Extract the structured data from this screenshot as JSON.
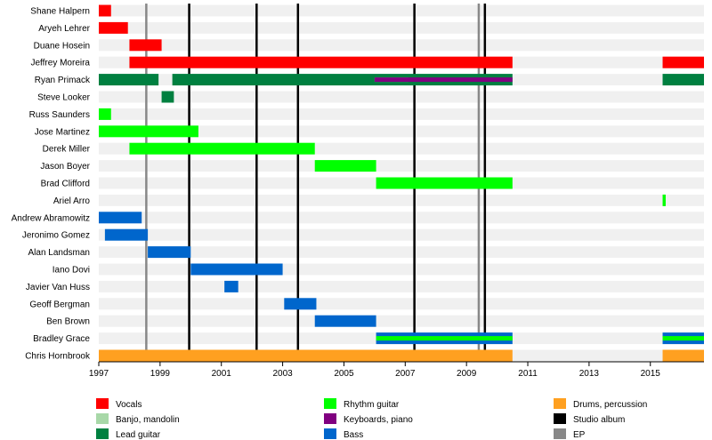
{
  "chart_data": {
    "type": "timeline",
    "title": "",
    "xlim": [
      1997,
      2016.75
    ],
    "xticks": [
      1997,
      1999,
      2001,
      2003,
      2005,
      2007,
      2009,
      2011,
      2013,
      2015
    ],
    "colors": {
      "Vocals": "#ff0000",
      "Banjo, mandolin": "#a8d8a8",
      "Lead guitar": "#008040",
      "Rhythm guitar": "#00ff00",
      "Keyboards, piano": "#800080",
      "Bass": "#0066cc",
      "Drums, percussion": "#ffa020",
      "Studio album": "#000000",
      "EP": "#888888"
    },
    "members": [
      {
        "name": "Shane Halpern",
        "bars": [
          {
            "role": "Vocals",
            "start": 1997,
            "end": 1997.4
          }
        ]
      },
      {
        "name": "Aryeh Lehrer",
        "bars": [
          {
            "role": "Vocals",
            "start": 1997,
            "end": 1997.95
          }
        ]
      },
      {
        "name": "Duane Hosein",
        "bars": [
          {
            "role": "Vocals",
            "start": 1998,
            "end": 1999.05
          }
        ]
      },
      {
        "name": "Jeffrey Moreira",
        "bars": [
          {
            "role": "Vocals",
            "start": 1998,
            "end": 2010.5
          },
          {
            "role": "Vocals",
            "start": 2015.4,
            "end": 2016.75
          }
        ]
      },
      {
        "name": "Ryan Primack",
        "bars": [
          {
            "role": "Lead guitar",
            "start": 1997,
            "end": 1998.95
          },
          {
            "role": "Lead guitar",
            "start": 1999.4,
            "end": 2010.5
          },
          {
            "role": "Lead guitar",
            "start": 2015.4,
            "end": 2016.75
          },
          {
            "role": "Banjo, mandolin",
            "start": 2006,
            "end": 2007.1,
            "inner": true
          },
          {
            "role": "Keyboards, piano",
            "start": 2006,
            "end": 2010.5,
            "inner": true
          }
        ]
      },
      {
        "name": "Steve Looker",
        "bars": [
          {
            "role": "Lead guitar",
            "start": 1999.05,
            "end": 1999.45
          }
        ]
      },
      {
        "name": "Russ Saunders",
        "bars": [
          {
            "role": "Rhythm guitar",
            "start": 1997,
            "end": 1997.4
          }
        ]
      },
      {
        "name": "Jose Martinez",
        "bars": [
          {
            "role": "Rhythm guitar",
            "start": 1997,
            "end": 2000.25
          }
        ]
      },
      {
        "name": "Derek Miller",
        "bars": [
          {
            "role": "Rhythm guitar",
            "start": 1998,
            "end": 2004.05
          }
        ]
      },
      {
        "name": "Jason Boyer",
        "bars": [
          {
            "role": "Rhythm guitar",
            "start": 2004.05,
            "end": 2006.05
          }
        ]
      },
      {
        "name": "Brad Clifford",
        "bars": [
          {
            "role": "Rhythm guitar",
            "start": 2006.05,
            "end": 2010.5
          }
        ]
      },
      {
        "name": "Ariel Arro",
        "bars": [
          {
            "role": "Rhythm guitar",
            "start": 2015.4,
            "end": 2015.5
          }
        ]
      },
      {
        "name": "Andrew Abramowitz",
        "bars": [
          {
            "role": "Bass",
            "start": 1997,
            "end": 1998.4
          }
        ]
      },
      {
        "name": "Jeronimo Gomez",
        "bars": [
          {
            "role": "Bass",
            "start": 1997.2,
            "end": 1998.6
          }
        ]
      },
      {
        "name": "Alan Landsman",
        "bars": [
          {
            "role": "Bass",
            "start": 1998.6,
            "end": 2000
          }
        ]
      },
      {
        "name": "Iano Dovi",
        "bars": [
          {
            "role": "Bass",
            "start": 2000,
            "end": 2003
          }
        ]
      },
      {
        "name": "Javier Van Huss",
        "bars": [
          {
            "role": "Bass",
            "start": 2001.1,
            "end": 2001.55
          }
        ]
      },
      {
        "name": "Geoff Bergman",
        "bars": [
          {
            "role": "Bass",
            "start": 2003.05,
            "end": 2004.1
          }
        ]
      },
      {
        "name": "Ben Brown",
        "bars": [
          {
            "role": "Bass",
            "start": 2004.05,
            "end": 2006.05
          }
        ]
      },
      {
        "name": "Bradley Grace",
        "bars": [
          {
            "role": "Bass",
            "start": 2006.05,
            "end": 2010.5
          },
          {
            "role": "Rhythm guitar",
            "start": 2006.05,
            "end": 2010.5,
            "inner": true
          },
          {
            "role": "Bass",
            "start": 2015.4,
            "end": 2016.75
          },
          {
            "role": "Rhythm guitar",
            "start": 2015.4,
            "end": 2016.75,
            "inner": true
          }
        ]
      },
      {
        "name": "Chris Hornbrook",
        "bars": [
          {
            "role": "Drums, percussion",
            "start": 1997,
            "end": 2010.5
          },
          {
            "role": "Drums, percussion",
            "start": 2015.4,
            "end": 2016.75
          }
        ]
      }
    ],
    "events": [
      {
        "type": "EP",
        "year": 1998.55
      },
      {
        "type": "Studio album",
        "year": 1999.95
      },
      {
        "type": "Studio album",
        "year": 2002.15
      },
      {
        "type": "Studio album",
        "year": 2003.5
      },
      {
        "type": "Studio album",
        "year": 2007.3
      },
      {
        "type": "EP",
        "year": 2009.4
      },
      {
        "type": "Studio album",
        "year": 2009.6
      }
    ],
    "legend": [
      "Vocals",
      "Banjo, mandolin",
      "Lead guitar",
      "Rhythm guitar",
      "Keyboards, piano",
      "Bass",
      "Drums, percussion",
      "Studio album",
      "EP"
    ],
    "legend_placement": "bottom"
  }
}
